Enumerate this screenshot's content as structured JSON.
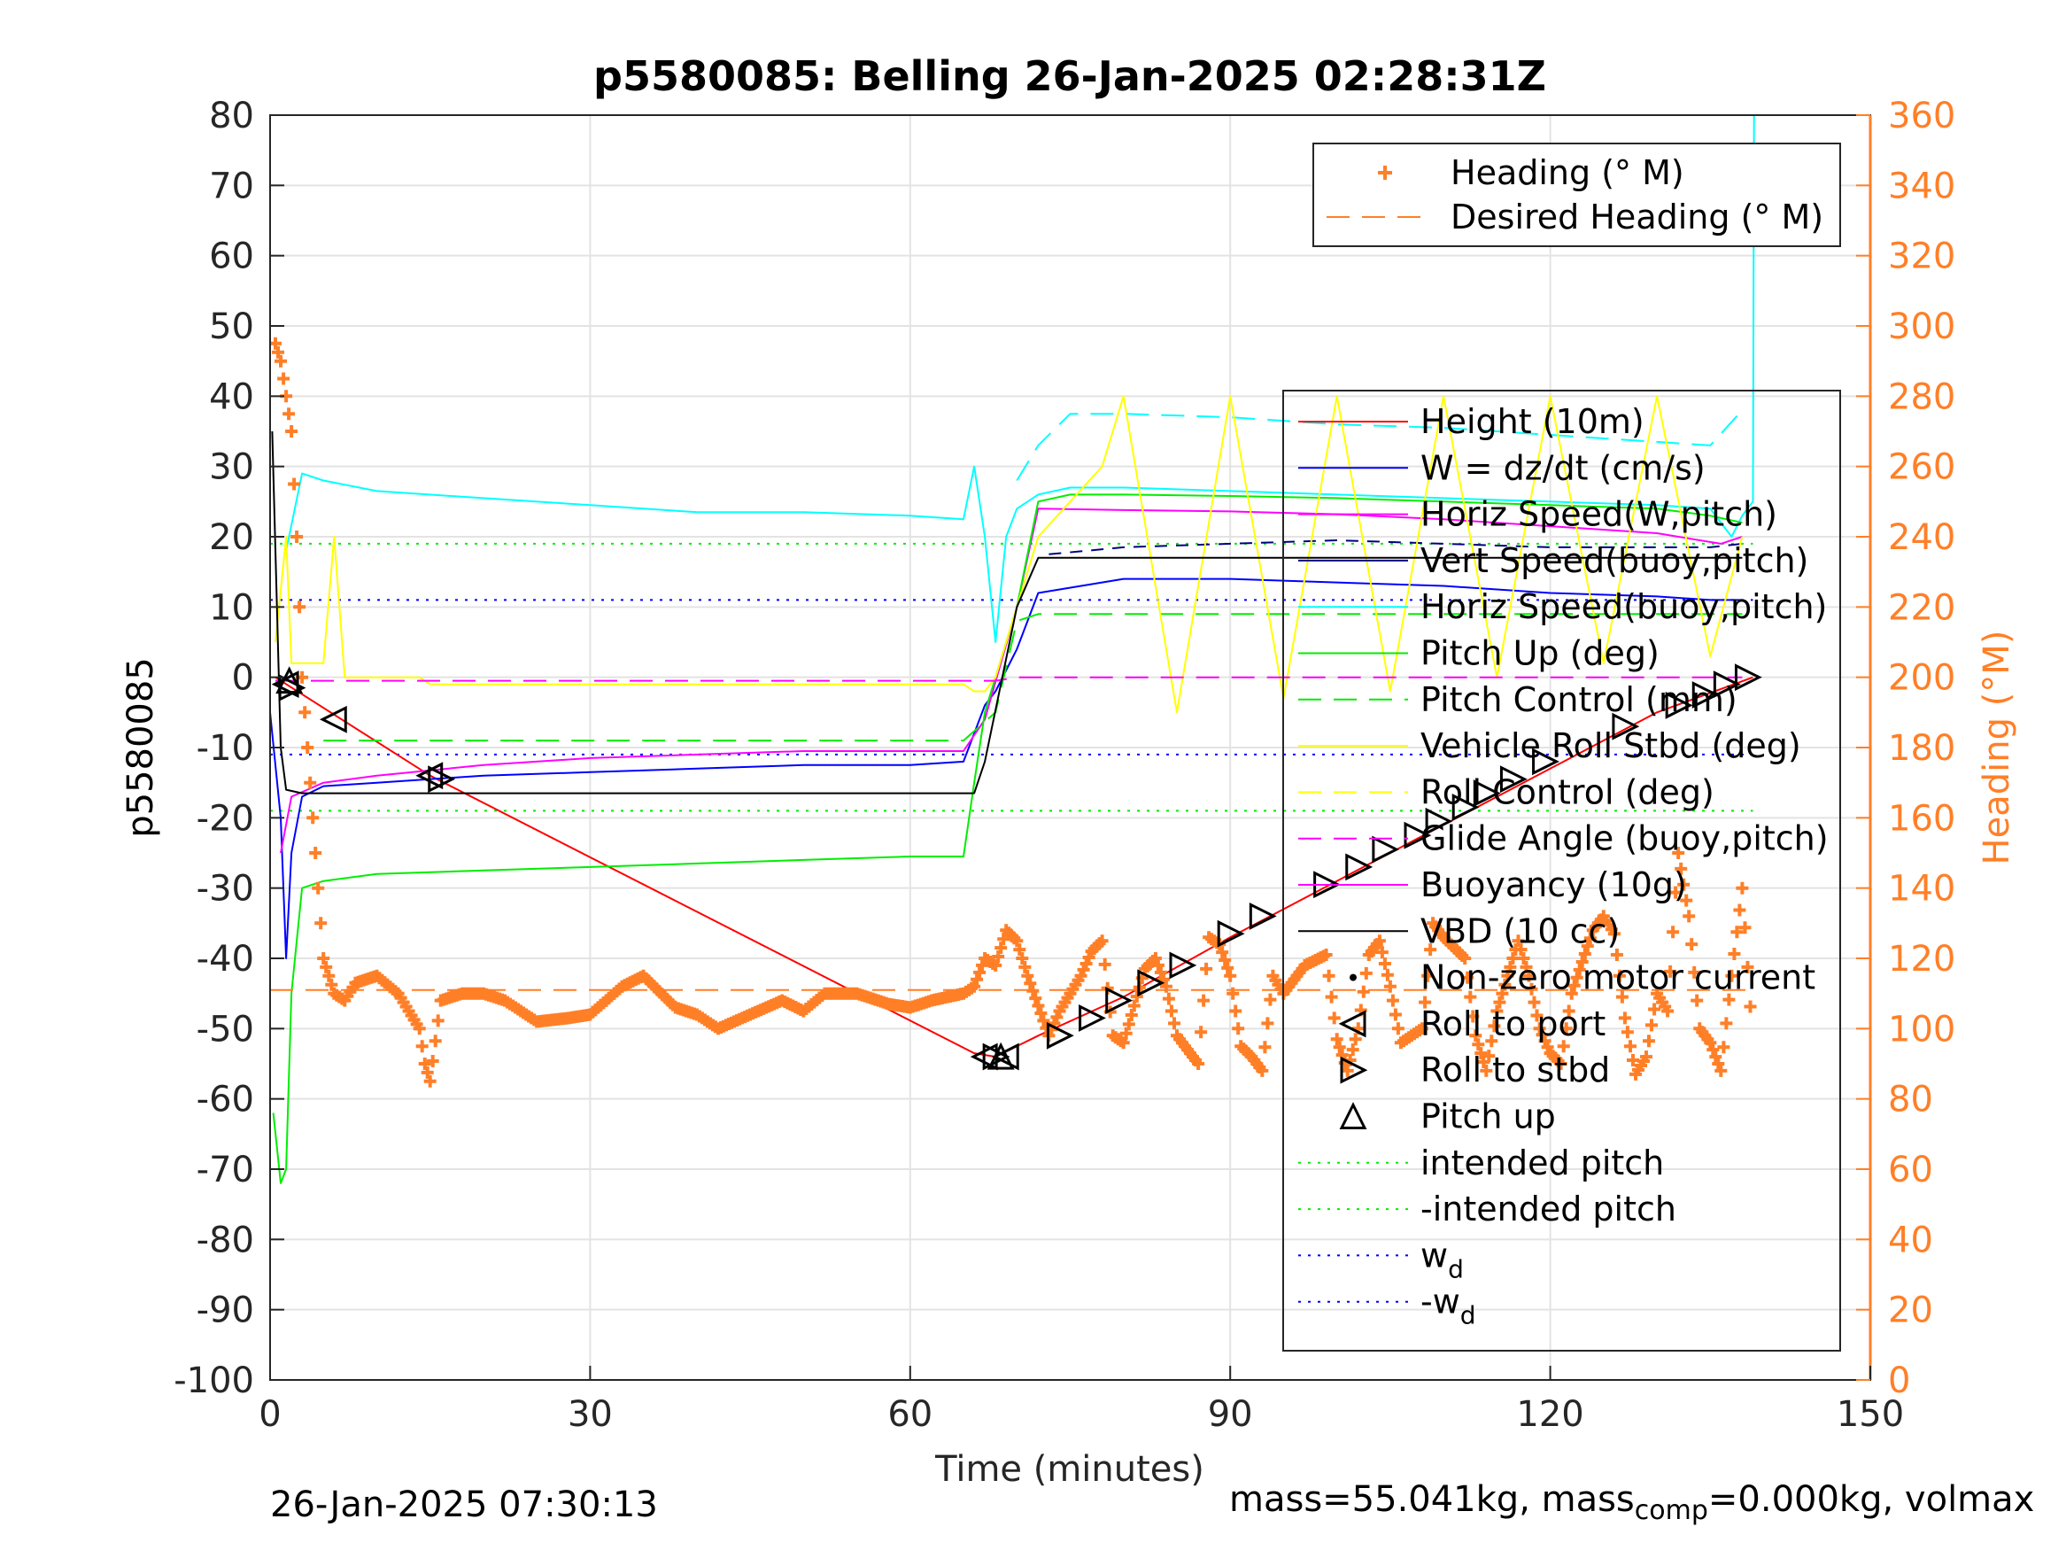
{
  "chart_data": {
    "type": "line",
    "title": "p5580085: Belling 26-Jan-2025 02:28:31Z",
    "xlabel": "Time (minutes)",
    "ylabel": "p5580085",
    "y2label": "Heading (°M)",
    "xlim": [
      0,
      150
    ],
    "ylim": [
      -100,
      80
    ],
    "y2lim": [
      0,
      360
    ],
    "xticks": [
      "0",
      "30",
      "60",
      "90",
      "120",
      "150"
    ],
    "yticks": [
      "80",
      "70",
      "60",
      "50",
      "40",
      "30",
      "20",
      "10",
      "0",
      "-10",
      "-20",
      "-30",
      "-40",
      "-50",
      "-60",
      "-70",
      "-80",
      "-90",
      "-100"
    ],
    "y2ticks": [
      "360",
      "340",
      "320",
      "300",
      "280",
      "260",
      "240",
      "220",
      "200",
      "180",
      "160",
      "140",
      "120",
      "100",
      "80",
      "60",
      "40",
      "20",
      "0"
    ],
    "grid": true,
    "colors": {
      "height": "#ff0000",
      "w": "#0000ff",
      "horiz_w": "#ff00ff",
      "vert_buoy": "#000080",
      "horiz_buoy": "#00ffff",
      "pitch": "#00ee00",
      "roll": "#ffff00",
      "glide": "#ff00ff",
      "buoyancy": "#ff00ff",
      "vbd": "#000000",
      "heading": "#ff7f27"
    },
    "legend_heading": {
      "placement": "top-right",
      "entries": [
        "Heading (° M)",
        "Desired Heading (° M)"
      ]
    },
    "legend_main": {
      "placement": "right",
      "entries": [
        {
          "label": "Height (10m)",
          "style": "line",
          "color": "#ff0000"
        },
        {
          "label": "W = dz/dt (cm/s)",
          "style": "line",
          "color": "#0000ff"
        },
        {
          "label": "Horiz Speed(W,pitch)",
          "style": "line",
          "color": "#ff00ff"
        },
        {
          "label": "Vert Speed(buoy,pitch)",
          "style": "line",
          "color": "#000080"
        },
        {
          "label": "Horiz Speed(buoy,pitch)",
          "style": "line",
          "color": "#00ffff"
        },
        {
          "label": "Pitch Up (deg)",
          "style": "line",
          "color": "#00ee00"
        },
        {
          "label": "Pitch Control (mm)",
          "style": "dash",
          "color": "#00ee00"
        },
        {
          "label": "Vehicle Roll Stbd (deg)",
          "style": "line",
          "color": "#ffff00"
        },
        {
          "label": "Roll Control (deg)",
          "style": "dash",
          "color": "#ffff00"
        },
        {
          "label": "Glide Angle (buoy,pitch)",
          "style": "dash",
          "color": "#ff00ff"
        },
        {
          "label": "Buoyancy (10g)",
          "style": "line",
          "color": "#ff00ff"
        },
        {
          "label": "VBD (10 cc)",
          "style": "line",
          "color": "#000000"
        },
        {
          "label": "Non-zero motor current",
          "style": "dot",
          "color": "#000000"
        },
        {
          "label": "Roll to port",
          "style": "tri-left",
          "color": "#000000"
        },
        {
          "label": "Roll to stbd",
          "style": "tri-right",
          "color": "#000000"
        },
        {
          "label": "Pitch up",
          "style": "tri-up",
          "color": "#000000"
        },
        {
          "label": "intended pitch",
          "style": "dotted",
          "color": "#00ee00"
        },
        {
          "label": "-intended pitch",
          "style": "dotted",
          "color": "#00ee00"
        },
        {
          "label": "w",
          "sub": "d",
          "style": "dotted",
          "color": "#0000ff"
        },
        {
          "label": "-w",
          "sub": "d",
          "style": "dotted",
          "color": "#0000ff"
        }
      ]
    },
    "reference_lines": {
      "intended_pitch": 19,
      "w_d": 11,
      "desired_heading": 111
    },
    "series": [
      {
        "key": "height",
        "x": [
          0.5,
          15,
          66,
          68,
          72,
          80,
          90,
          100,
          110,
          120,
          130,
          139
        ],
        "y": [
          0,
          -14,
          -53.5,
          -54,
          -51,
          -45.5,
          -37,
          -29,
          -21,
          -13,
          -5,
          0
        ]
      },
      {
        "key": "w",
        "x": [
          0,
          1,
          1.5,
          2,
          3,
          5,
          10,
          20,
          30,
          40,
          50,
          60,
          65,
          66,
          67,
          68,
          70,
          72,
          80,
          90,
          100,
          110,
          120,
          130,
          135,
          138
        ],
        "y": [
          -5,
          -20,
          -40,
          -25,
          -17,
          -15.5,
          -15,
          -14,
          -13.5,
          -13,
          -12.5,
          -12.5,
          -12,
          -8,
          -4,
          -2,
          4,
          12,
          14,
          14,
          13.5,
          13,
          12,
          11.5,
          11,
          11
        ]
      },
      {
        "key": "horiz_w",
        "x": [
          1,
          2,
          5,
          10,
          20,
          30,
          40,
          50,
          60,
          65,
          67,
          70,
          72,
          80,
          90,
          100,
          110,
          120,
          130,
          136,
          138
        ],
        "y": [
          -25,
          -17,
          -15,
          -14,
          -12.5,
          -11.5,
          -11,
          -10.5,
          -10.5,
          -10.5,
          -6,
          10,
          24,
          23.8,
          23.6,
          23.2,
          22.5,
          21.5,
          20.5,
          19,
          20
        ]
      },
      {
        "key": "vert_buoy",
        "x": [
          73,
          80,
          90,
          100,
          110,
          120,
          130,
          135,
          138
        ],
        "y": [
          17.5,
          18.5,
          19,
          19.5,
          19,
          18.5,
          18.5,
          18.5,
          19
        ]
      },
      {
        "key": "horiz_buoy",
        "x": [
          1.5,
          3,
          5,
          10,
          20,
          30,
          40,
          50,
          60,
          65,
          66,
          67,
          68,
          69,
          70,
          72,
          75,
          80,
          90,
          100,
          110,
          120,
          130,
          135,
          137,
          138,
          139,
          139.1
        ],
        "y": [
          18,
          29,
          28,
          26.5,
          25.5,
          24.5,
          23.5,
          23.5,
          23,
          22.5,
          30,
          20,
          5,
          20,
          24,
          26,
          27,
          27,
          26.5,
          26,
          25.5,
          25,
          24.5,
          24,
          20,
          23,
          25,
          80
        ]
      },
      {
        "key": "horiz_buoy_dash",
        "x": [
          70,
          72,
          75,
          80,
          90,
          100,
          110,
          120,
          130,
          135,
          138
        ],
        "y": [
          28,
          33,
          37.5,
          37.5,
          37,
          36,
          35.5,
          34.5,
          33.5,
          33,
          38
        ]
      },
      {
        "key": "pitch",
        "x": [
          0.3,
          1,
          1.5,
          2,
          3,
          5,
          10,
          20,
          30,
          40,
          50,
          60,
          65,
          66,
          67,
          68,
          70,
          72,
          75,
          80,
          90,
          100,
          110,
          120,
          130,
          135,
          138
        ],
        "y": [
          -62,
          -72,
          -70,
          -45,
          -30,
          -29,
          -28,
          -27.5,
          -27,
          -26.5,
          -26,
          -25.5,
          -25.5,
          -15,
          -5,
          0,
          10,
          25,
          26,
          26,
          25.8,
          25.5,
          25,
          24.5,
          24,
          23,
          22
        ]
      },
      {
        "key": "pitch_ctrl",
        "x": [
          5,
          10,
          20,
          30,
          40,
          50,
          60,
          65,
          68,
          70,
          72,
          80,
          90,
          100,
          110,
          120,
          130,
          135,
          138
        ],
        "y": [
          -9,
          -9,
          -9,
          -9,
          -9,
          -9,
          -9,
          -9,
          -5,
          8,
          9,
          9,
          9,
          9,
          9,
          9,
          9,
          9,
          9
        ]
      },
      {
        "key": "roll",
        "x": [
          0.5,
          1.5,
          2,
          5,
          6,
          7,
          10,
          14,
          15,
          16,
          20,
          30,
          40,
          50,
          60,
          65,
          66,
          67,
          68,
          70,
          72,
          75,
          78,
          80,
          85,
          90,
          95,
          100,
          105,
          110,
          115,
          120,
          125,
          130,
          135,
          138
        ],
        "y": [
          5,
          20,
          2,
          2,
          20,
          0,
          0,
          0,
          -1,
          -1,
          -1,
          -1,
          -1,
          -1,
          -1,
          -1,
          -2,
          -2,
          0,
          10,
          20,
          25,
          30,
          40,
          -5,
          40,
          -3,
          40,
          -2,
          40,
          0,
          40,
          2,
          40,
          3,
          20
        ]
      },
      {
        "key": "glide",
        "x": [
          0.5,
          10,
          20,
          30,
          40,
          50,
          60,
          66,
          68,
          70,
          72,
          80,
          90,
          100,
          110,
          120,
          130,
          138
        ],
        "y": [
          -0.5,
          -0.5,
          -0.5,
          -0.5,
          -0.5,
          -0.5,
          -0.5,
          -0.5,
          -0.5,
          0,
          0,
          0,
          0,
          0,
          0,
          0,
          0,
          0
        ]
      },
      {
        "key": "vbd",
        "x": [
          0.2,
          1,
          1.5,
          3,
          5,
          10,
          20,
          30,
          40,
          50,
          60,
          66,
          67,
          70,
          72,
          80,
          90,
          100,
          110,
          120,
          130,
          135,
          137,
          138
        ],
        "y": [
          35,
          -10,
          -16,
          -16.5,
          -16.5,
          -16.5,
          -16.5,
          -16.5,
          -16.5,
          -16.5,
          -16.5,
          -16.5,
          -12,
          10,
          17,
          17,
          17,
          17,
          17,
          17,
          17,
          17,
          17,
          17
        ]
      },
      {
        "key": "heading",
        "x": [
          0.5,
          1,
          1.5,
          2,
          2.5,
          3,
          3.5,
          4,
          4.5,
          5,
          6,
          7,
          8,
          10,
          12,
          14,
          14.5,
          15,
          16,
          18,
          20,
          22,
          25,
          28,
          30,
          33,
          35,
          38,
          40,
          42,
          45,
          48,
          50,
          52,
          55,
          58,
          60,
          62,
          65,
          66,
          67,
          68,
          69,
          70,
          71,
          73,
          74,
          76,
          77,
          78,
          79,
          80,
          82,
          83,
          84,
          85,
          87,
          88,
          89,
          90,
          91,
          92,
          93,
          94,
          95,
          97,
          99,
          100,
          101,
          102,
          103,
          104,
          105,
          106,
          108,
          109,
          110,
          112,
          113,
          114,
          115,
          117,
          118,
          119,
          120,
          121,
          122,
          124,
          125,
          126,
          127,
          128,
          129,
          130,
          131,
          132,
          133,
          134,
          135,
          136,
          137,
          138,
          139
        ],
        "y": [
          295,
          290,
          280,
          270,
          240,
          200,
          180,
          160,
          140,
          120,
          110,
          108,
          113,
          115,
          110,
          100,
          90,
          85,
          108,
          110,
          110,
          108,
          102,
          103,
          104,
          112,
          115,
          106,
          104,
          100,
          104,
          108,
          105,
          110,
          110,
          107,
          106,
          108,
          110,
          112,
          120,
          118,
          128,
          125,
          115,
          98,
          105,
          115,
          122,
          125,
          98,
          96,
          117,
          120,
          112,
          98,
          90,
          126,
          124,
          115,
          95,
          92,
          88,
          115,
          110,
          118,
          121,
          97,
          88,
          100,
          121,
          125,
          112,
          96,
          100,
          130,
          126,
          120,
          98,
          88,
          105,
          125,
          115,
          100,
          93,
          90,
          110,
          128,
          132,
          127,
          103,
          87,
          92,
          110,
          105,
          150,
          132,
          100,
          96,
          88,
          115,
          140,
          95
        ]
      }
    ],
    "events": {
      "roll_to_port": [
        [
          1.5,
          -1
        ],
        [
          6,
          -6
        ],
        [
          15,
          -14
        ],
        [
          67,
          -54
        ],
        [
          69,
          -54
        ]
      ],
      "roll_to_stbd": [
        [
          2,
          -1.5
        ],
        [
          16,
          -14.5
        ],
        [
          68,
          -54
        ],
        [
          74,
          -51
        ],
        [
          77,
          -48.5
        ],
        [
          79.5,
          -46
        ],
        [
          82.5,
          -43.5
        ],
        [
          85.5,
          -41
        ],
        [
          90,
          -36.5
        ],
        [
          93,
          -34
        ],
        [
          99,
          -29.5
        ],
        [
          102,
          -27
        ],
        [
          104.5,
          -24.5
        ],
        [
          107.5,
          -22.5
        ],
        [
          109.5,
          -20.5
        ],
        [
          112,
          -18.5
        ],
        [
          114,
          -16.5
        ],
        [
          116.5,
          -14.5
        ],
        [
          119.5,
          -12
        ],
        [
          127,
          -7
        ],
        [
          132,
          -4
        ],
        [
          134.5,
          -2.5
        ],
        [
          136.5,
          -1
        ],
        [
          138.5,
          0
        ]
      ],
      "pitch_up": [
        [
          1.8,
          -0.5
        ],
        [
          68.5,
          -54
        ]
      ]
    }
  },
  "footer": {
    "timestamp": "26-Jan-2025 07:30:13",
    "mass_text": "mass=55.041kg, mass",
    "mass_sub": "comp",
    "mass_tail": "=0.000kg, volmax"
  }
}
